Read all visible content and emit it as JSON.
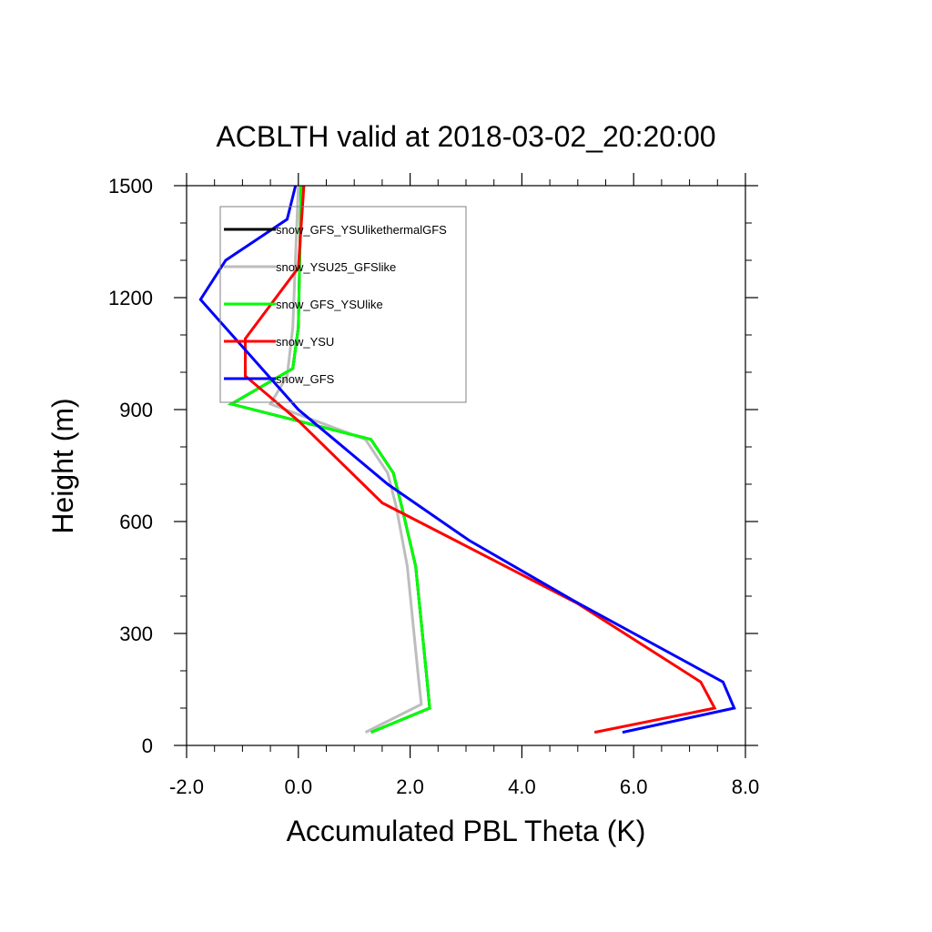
{
  "chart_data": {
    "type": "line",
    "title": "ACBLTH valid at 2018-03-02_20:20:00",
    "xlabel": "Accumulated PBL Theta (K)",
    "ylabel": "Height (m)",
    "xlim": [
      -2.0,
      8.0
    ],
    "ylim": [
      0,
      1500
    ],
    "xticks": [
      -2.0,
      0.0,
      2.0,
      4.0,
      6.0,
      8.0
    ],
    "xtick_labels": [
      "-2.0",
      "0.0",
      "2.0",
      "4.0",
      "6.0",
      "8.0"
    ],
    "yticks": [
      0,
      300,
      600,
      900,
      1200,
      1500
    ],
    "ytick_labels": [
      "0",
      "300",
      "600",
      "900",
      "1200",
      "1500"
    ],
    "grid": false,
    "legend_placement": "top-left",
    "series": [
      {
        "name": "snow_GFS_YSUlikethermalGFS",
        "color": "#000000",
        "points": [
          [
            1.3,
            35
          ],
          [
            2.35,
            100
          ],
          [
            2.3,
            180
          ],
          [
            2.1,
            480
          ],
          [
            1.85,
            640
          ],
          [
            1.7,
            730
          ],
          [
            1.3,
            820
          ],
          [
            -1.2,
            915
          ],
          [
            -0.1,
            1010
          ],
          [
            0.0,
            1120
          ],
          [
            0.05,
            1500
          ]
        ]
      },
      {
        "name": "snow_YSU25_GFSlike",
        "color": "#bdbdbd",
        "points": [
          [
            1.2,
            35
          ],
          [
            2.2,
            110
          ],
          [
            2.15,
            180
          ],
          [
            1.95,
            480
          ],
          [
            1.75,
            640
          ],
          [
            1.6,
            730
          ],
          [
            1.2,
            820
          ],
          [
            -0.5,
            915
          ],
          [
            -0.2,
            990
          ],
          [
            -0.1,
            1120
          ],
          [
            0.0,
            1500
          ]
        ]
      },
      {
        "name": "snow_GFS_YSUlike",
        "color": "#00ff00",
        "points": [
          [
            1.3,
            35
          ],
          [
            2.35,
            100
          ],
          [
            2.3,
            180
          ],
          [
            2.1,
            480
          ],
          [
            1.85,
            640
          ],
          [
            1.7,
            730
          ],
          [
            1.3,
            820
          ],
          [
            -1.2,
            915
          ],
          [
            -0.1,
            1010
          ],
          [
            0.0,
            1120
          ],
          [
            0.05,
            1500
          ]
        ]
      },
      {
        "name": "snow_YSU",
        "color": "#ff0000",
        "points": [
          [
            5.3,
            35
          ],
          [
            7.45,
            100
          ],
          [
            7.2,
            170
          ],
          [
            5.0,
            380
          ],
          [
            2.8,
            550
          ],
          [
            1.5,
            650
          ],
          [
            0.0,
            870
          ],
          [
            -0.95,
            990
          ],
          [
            -0.95,
            1090
          ],
          [
            0.0,
            1280
          ],
          [
            0.1,
            1500
          ]
        ]
      },
      {
        "name": "snow_GFS",
        "color": "#0000ff",
        "points": [
          [
            5.8,
            35
          ],
          [
            7.8,
            100
          ],
          [
            7.6,
            170
          ],
          [
            4.9,
            390
          ],
          [
            3.05,
            550
          ],
          [
            1.6,
            700
          ],
          [
            0.0,
            900
          ],
          [
            -1.75,
            1195
          ],
          [
            -1.3,
            1300
          ],
          [
            -0.2,
            1410
          ],
          [
            -0.05,
            1500
          ]
        ]
      }
    ]
  }
}
